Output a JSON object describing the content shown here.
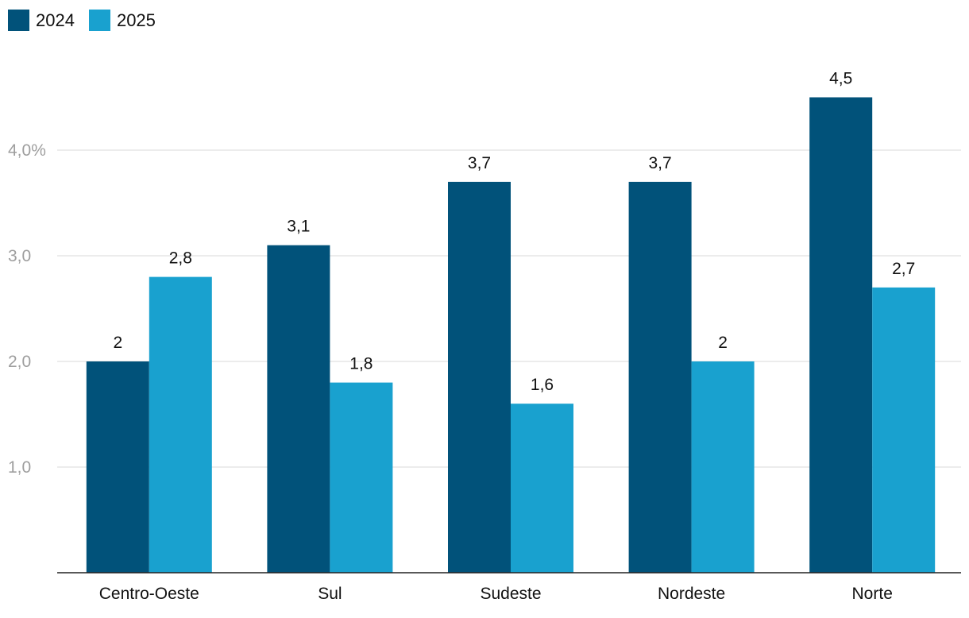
{
  "chart_data": {
    "type": "bar",
    "categories": [
      "Centro-Oeste",
      "Sul",
      "Sudeste",
      "Nordeste",
      "Norte"
    ],
    "series": [
      {
        "name": "2024",
        "color": "#01527a",
        "values": [
          2.0,
          3.1,
          3.7,
          3.7,
          4.5
        ],
        "labels": [
          "2",
          "3,1",
          "3,7",
          "3,7",
          "4,5"
        ]
      },
      {
        "name": "2025",
        "color": "#19a1cf",
        "values": [
          2.8,
          1.8,
          1.6,
          2.0,
          2.7
        ],
        "labels": [
          "2,8",
          "1,8",
          "1,6",
          "2",
          "2,7"
        ]
      }
    ],
    "yticks": [
      {
        "value": 1.0,
        "label": "1,0"
      },
      {
        "value": 2.0,
        "label": "2,0"
      },
      {
        "value": 3.0,
        "label": "3,0"
      },
      {
        "value": 4.0,
        "label": "4,0%"
      }
    ],
    "ylim": [
      0.0,
      5.0
    ],
    "grid": true,
    "legend_position": "top-left",
    "title": "",
    "xlabel": "",
    "ylabel": ""
  }
}
